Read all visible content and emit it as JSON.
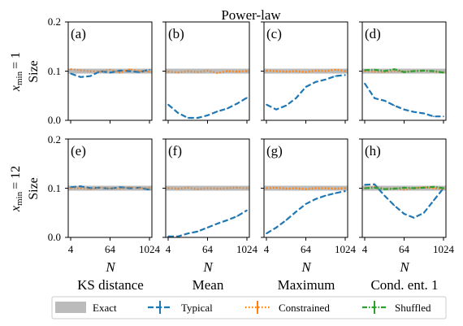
{
  "figure": {
    "title": "Power-law",
    "row_labels": [
      {
        "xmin_prefix": "x",
        "xmin_sub": "min",
        "xmin_value": "= 1",
        "ylabel": "Size"
      },
      {
        "xmin_prefix": "x",
        "xmin_sub": "min",
        "xmin_value": "= 12",
        "ylabel": "Size"
      }
    ],
    "column_labels": [
      "KS distance",
      "Mean",
      "Maximum",
      "Cond. ent. 1"
    ],
    "xlabel": "N",
    "x_ticks": [
      "4",
      "64",
      "1024"
    ],
    "y_ticks": [
      "0.0",
      "0.1",
      "0.2"
    ],
    "legend": [
      {
        "label": "Exact",
        "style": "band",
        "color": "#bbbbbb"
      },
      {
        "label": "Typical",
        "style": "dashed",
        "color": "#1f77b4"
      },
      {
        "label": "Constrained",
        "style": "dotted",
        "color": "#ff7f0e"
      },
      {
        "label": "Shuffled",
        "style": "dashdot",
        "color": "#2ca02c"
      }
    ],
    "colors": {
      "exact": "#bbbbbb",
      "typical": "#1f77b4",
      "constrained": "#ff7f0e",
      "shuffled": "#2ca02c"
    }
  },
  "chart_data": [
    {
      "type": "line",
      "panel": "(a)",
      "row": 0,
      "col": 0,
      "xscale": "log2",
      "xlim": [
        4,
        1024
      ],
      "ylim": [
        0,
        0.2
      ],
      "exact": 0.1,
      "x": [
        4,
        8,
        16,
        32,
        64,
        128,
        256,
        512,
        1024
      ],
      "series": [
        {
          "key": "typical",
          "values": [
            0.095,
            0.088,
            0.09,
            0.1,
            0.097,
            0.101,
            0.1,
            0.098,
            0.103
          ]
        },
        {
          "key": "constrained",
          "values": [
            0.104,
            0.102,
            0.1,
            0.099,
            0.103,
            0.097,
            0.104,
            0.1,
            0.099
          ]
        }
      ]
    },
    {
      "type": "line",
      "panel": "(b)",
      "row": 0,
      "col": 1,
      "xscale": "log2",
      "xlim": [
        4,
        1024
      ],
      "ylim": [
        0,
        0.2
      ],
      "exact": 0.1,
      "x": [
        4,
        8,
        16,
        32,
        64,
        128,
        256,
        512,
        1024
      ],
      "series": [
        {
          "key": "typical",
          "values": [
            0.032,
            0.015,
            0.005,
            0.005,
            0.01,
            0.018,
            0.024,
            0.034,
            0.046
          ]
        },
        {
          "key": "constrained",
          "values": [
            0.099,
            0.097,
            0.1,
            0.098,
            0.101,
            0.096,
            0.1,
            0.099,
            0.1
          ]
        }
      ]
    },
    {
      "type": "line",
      "panel": "(c)",
      "row": 0,
      "col": 2,
      "xscale": "log2",
      "xlim": [
        4,
        1024
      ],
      "ylim": [
        0,
        0.2
      ],
      "exact": 0.1,
      "x": [
        4,
        8,
        16,
        32,
        64,
        128,
        256,
        512,
        1024
      ],
      "series": [
        {
          "key": "typical",
          "values": [
            0.032,
            0.022,
            0.03,
            0.045,
            0.068,
            0.078,
            0.083,
            0.09,
            0.092
          ]
        },
        {
          "key": "constrained",
          "values": [
            0.101,
            0.1,
            0.099,
            0.1,
            0.098,
            0.101,
            0.1,
            0.103,
            0.1
          ]
        }
      ]
    },
    {
      "type": "line",
      "panel": "(d)",
      "row": 0,
      "col": 3,
      "xscale": "log2",
      "xlim": [
        4,
        1024
      ],
      "ylim": [
        0,
        0.2
      ],
      "exact": 0.1,
      "x": [
        4,
        8,
        16,
        32,
        64,
        128,
        256,
        512,
        1024
      ],
      "series": [
        {
          "key": "typical",
          "values": [
            0.075,
            0.045,
            0.04,
            0.03,
            0.022,
            0.017,
            0.014,
            0.008,
            0.008
          ]
        },
        {
          "key": "constrained",
          "values": [
            0.1,
            0.099,
            0.098,
            0.1,
            0.099,
            0.1,
            0.101,
            0.099,
            0.098
          ]
        },
        {
          "key": "shuffled",
          "values": [
            0.102,
            0.103,
            0.1,
            0.104,
            0.098,
            0.1,
            0.101,
            0.1,
            0.097
          ]
        }
      ]
    },
    {
      "type": "line",
      "panel": "(e)",
      "row": 1,
      "col": 0,
      "xscale": "log2",
      "xlim": [
        4,
        1024
      ],
      "ylim": [
        0,
        0.2
      ],
      "exact": 0.1,
      "x": [
        4,
        8,
        16,
        32,
        64,
        128,
        256,
        512,
        1024
      ],
      "series": [
        {
          "key": "typical",
          "values": [
            0.102,
            0.104,
            0.1,
            0.101,
            0.099,
            0.102,
            0.1,
            0.101,
            0.097
          ]
        },
        {
          "key": "constrained",
          "values": [
            0.1,
            0.1,
            0.098,
            0.101,
            0.1,
            0.099,
            0.102,
            0.1,
            0.1
          ]
        }
      ]
    },
    {
      "type": "line",
      "panel": "(f)",
      "row": 1,
      "col": 1,
      "xscale": "log2",
      "xlim": [
        4,
        1024
      ],
      "ylim": [
        0,
        0.2
      ],
      "exact": 0.1,
      "x": [
        4,
        8,
        16,
        32,
        64,
        128,
        256,
        512,
        1024
      ],
      "series": [
        {
          "key": "typical",
          "values": [
            0.002,
            0.002,
            0.008,
            0.012,
            0.02,
            0.028,
            0.035,
            0.043,
            0.055
          ]
        },
        {
          "key": "constrained",
          "values": [
            0.1,
            0.099,
            0.101,
            0.098,
            0.1,
            0.099,
            0.1,
            0.101,
            0.1
          ]
        }
      ]
    },
    {
      "type": "line",
      "panel": "(g)",
      "row": 1,
      "col": 2,
      "xscale": "log2",
      "xlim": [
        4,
        1024
      ],
      "ylim": [
        0,
        0.2
      ],
      "exact": 0.1,
      "x": [
        4,
        8,
        16,
        32,
        64,
        128,
        256,
        512,
        1024
      ],
      "series": [
        {
          "key": "typical",
          "values": [
            0.008,
            0.02,
            0.035,
            0.052,
            0.068,
            0.078,
            0.085,
            0.09,
            0.094
          ]
        },
        {
          "key": "constrained",
          "values": [
            0.1,
            0.101,
            0.099,
            0.1,
            0.098,
            0.1,
            0.1,
            0.099,
            0.1
          ]
        }
      ]
    },
    {
      "type": "line",
      "panel": "(h)",
      "row": 1,
      "col": 3,
      "xscale": "log2",
      "xlim": [
        4,
        1024
      ],
      "ylim": [
        0,
        0.2
      ],
      "exact": 0.1,
      "x": [
        4,
        8,
        16,
        32,
        64,
        128,
        256,
        512,
        1024
      ],
      "series": [
        {
          "key": "typical",
          "values": [
            0.107,
            0.108,
            0.085,
            0.065,
            0.048,
            0.04,
            0.05,
            0.075,
            0.1
          ]
        },
        {
          "key": "constrained",
          "values": [
            0.1,
            0.103,
            0.099,
            0.1,
            0.097,
            0.1,
            0.102,
            0.1,
            0.099
          ]
        },
        {
          "key": "shuffled",
          "values": [
            0.1,
            0.101,
            0.098,
            0.099,
            0.101,
            0.1,
            0.101,
            0.103,
            0.1
          ]
        }
      ]
    }
  ]
}
